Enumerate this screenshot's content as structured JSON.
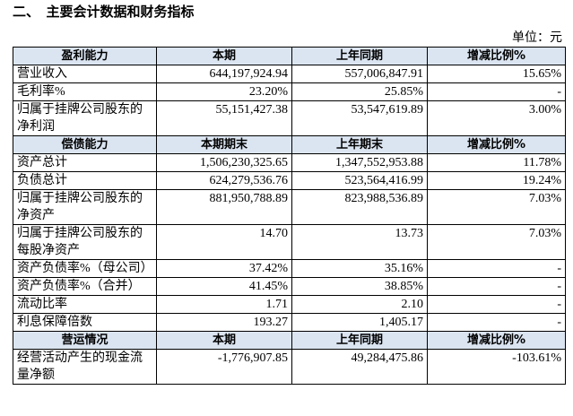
{
  "header": {
    "title": "二、　主要会计数据和财务指标",
    "unit": "单位：元"
  },
  "sections": [
    {
      "header": [
        "盈利能力",
        "本期",
        "上年同期",
        "增减比例%"
      ],
      "rows": [
        [
          "营业收入",
          "644,197,924.94",
          "557,006,847.91",
          "15.65%"
        ],
        [
          "毛利率%",
          "23.20%",
          "25.85%",
          "-"
        ],
        [
          "归属于挂牌公司股东的净利润",
          "55,151,427.38",
          "53,547,619.89",
          "3.00%"
        ]
      ]
    },
    {
      "header": [
        "偿债能力",
        "本期期末",
        "上年期末",
        "增减比例%"
      ],
      "rows": [
        [
          "资产总计",
          "1,506,230,325.65",
          "1,347,552,953.88",
          "11.78%"
        ],
        [
          "负债总计",
          "624,279,536.76",
          "523,564,416.99",
          "19.24%"
        ],
        [
          "归属于挂牌公司股东的净资产",
          "881,950,788.89",
          "823,988,536.89",
          "7.03%"
        ],
        [
          "归属于挂牌公司股东的每股净资产",
          "14.70",
          "13.73",
          "7.03%"
        ],
        [
          "资产负债率%（母公司）",
          "37.42%",
          "35.16%",
          "-"
        ],
        [
          "资产负债率%（合并）",
          "41.45%",
          "38.85%",
          "-"
        ],
        [
          "流动比率",
          "1.71",
          "2.10",
          "-"
        ],
        [
          "利息保障倍数",
          "193.27",
          "1,405.17",
          "-"
        ]
      ]
    },
    {
      "header": [
        "营运情况",
        "本期",
        "上年同期",
        "增减比例%"
      ],
      "rows": [
        [
          "经营活动产生的现金流量净额",
          "-1,776,907.85",
          "49,284,475.86",
          "-103.61%"
        ]
      ]
    }
  ]
}
